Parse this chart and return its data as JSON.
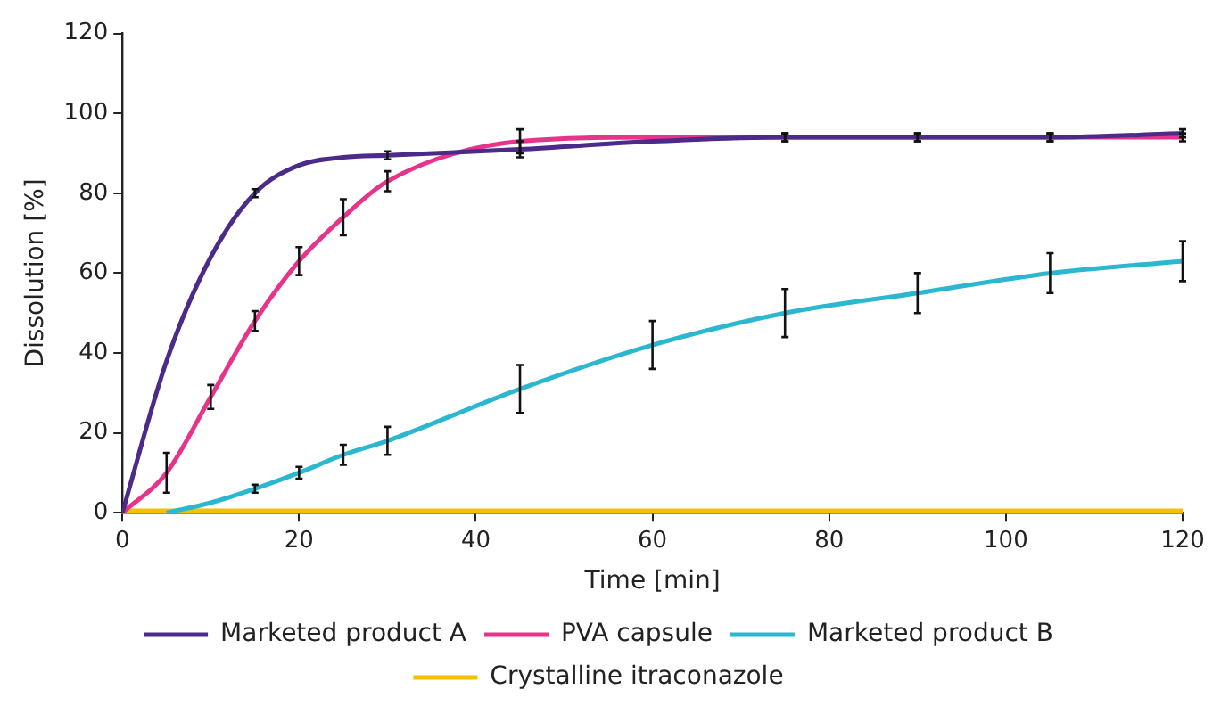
{
  "chart_data": {
    "type": "line",
    "xlabel": "Time [min]",
    "ylabel": "Dissolution [%]",
    "xlim": [
      0,
      120
    ],
    "xticks": [
      0,
      20,
      40,
      60,
      80,
      100,
      120
    ],
    "ylim": [
      0,
      120
    ],
    "yticks": [
      0,
      20,
      40,
      60,
      80,
      100,
      120
    ],
    "grid": false,
    "legend": "bottom",
    "x": [
      0,
      5,
      10,
      15,
      20,
      25,
      30,
      45,
      60,
      75,
      90,
      105,
      120
    ],
    "series": [
      {
        "name": "Marketed product A",
        "color": "#4b2a8a",
        "values": [
          0,
          38,
          64,
          80,
          87,
          89,
          89.5,
          91,
          93,
          94,
          94,
          94,
          95
        ],
        "errors": [
          null,
          null,
          null,
          1,
          null,
          null,
          1,
          2,
          null,
          1,
          1,
          1,
          1
        ]
      },
      {
        "name": "PVA capsule",
        "color": "#e8338a",
        "values": [
          0,
          10,
          29,
          48,
          63,
          74,
          83,
          93,
          94,
          94,
          94,
          94,
          94
        ],
        "errors": [
          null,
          5,
          3,
          2.5,
          3.5,
          4.5,
          2.5,
          3,
          null,
          1,
          1,
          1,
          1
        ]
      },
      {
        "name": "Marketed product B",
        "color": "#2bb7cf",
        "values": [
          null,
          0,
          2.5,
          6,
          10,
          14.5,
          18,
          31,
          42,
          50,
          55,
          60,
          63
        ],
        "errors": [
          null,
          null,
          null,
          1,
          1.5,
          2.5,
          3.5,
          6,
          6,
          6,
          5,
          5,
          5
        ]
      },
      {
        "name": "Crystalline itraconazole",
        "color": "#f5c000",
        "values": [
          0.5,
          0.5,
          0.5,
          0.5,
          0.5,
          0.5,
          0.5,
          0.5,
          0.5,
          0.5,
          0.5,
          0.5,
          0.5
        ]
      }
    ]
  }
}
